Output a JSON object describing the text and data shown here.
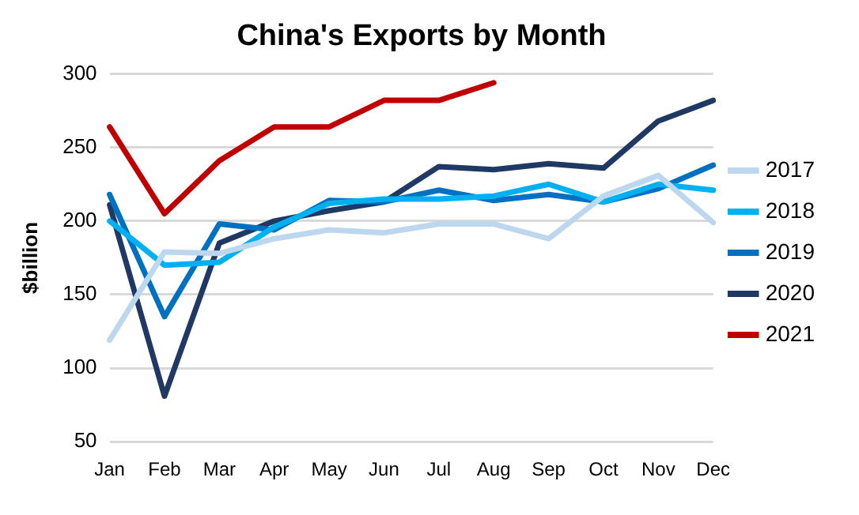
{
  "chart_data": {
    "type": "line",
    "title": "China's Exports by Month",
    "ylabel": "$billion",
    "categories": [
      "Jan",
      "Feb",
      "Mar",
      "Apr",
      "May",
      "Jun",
      "Jul",
      "Aug",
      "Sep",
      "Oct",
      "Nov",
      "Dec"
    ],
    "series": [
      {
        "name": "2017",
        "color": "#bdd7ee",
        "values": [
          119,
          179,
          178,
          188,
          194,
          192,
          198,
          198,
          188,
          217,
          231,
          199
        ]
      },
      {
        "name": "2018",
        "color": "#00b0f0",
        "values": [
          200,
          170,
          172,
          196,
          212,
          215,
          215,
          217,
          225,
          213,
          225,
          221
        ]
      },
      {
        "name": "2019",
        "color": "#0070c0",
        "values": [
          218,
          135,
          198,
          194,
          214,
          213,
          221,
          214,
          218,
          213,
          222,
          238
        ]
      },
      {
        "name": "2020",
        "color": "#203864",
        "values": [
          211,
          81,
          185,
          200,
          207,
          213,
          237,
          235,
          239,
          236,
          268,
          282
        ]
      },
      {
        "name": "2021",
        "color": "#c00000",
        "values": [
          264,
          205,
          241,
          264,
          264,
          282,
          282,
          294,
          null,
          null,
          null,
          null
        ]
      }
    ],
    "ylim": [
      50,
      300
    ],
    "yticks": [
      50,
      100,
      150,
      200,
      250,
      300
    ],
    "grid": "y",
    "legend": "right",
    "marker": "none",
    "line_style": "solid"
  }
}
